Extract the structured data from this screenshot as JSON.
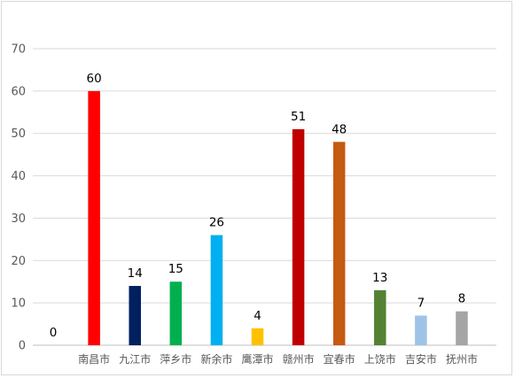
{
  "chart_data": {
    "type": "bar",
    "title": "",
    "xlabel": "",
    "ylabel": "",
    "ylim": [
      0,
      70
    ],
    "yticks": [
      0,
      10,
      20,
      30,
      40,
      50,
      60,
      70
    ],
    "grid": true,
    "legend": "none",
    "categories": [
      "",
      "南昌市",
      "九江市",
      "萍乡市",
      "新余市",
      "鹰潭市",
      "赣州市",
      "宜春市",
      "上饶市",
      "吉安市",
      "抚州市"
    ],
    "values": [
      0,
      60,
      14,
      15,
      26,
      4,
      51,
      48,
      13,
      7,
      8
    ],
    "colors": [
      "#4472c4",
      "#ff0000",
      "#002060",
      "#00b050",
      "#00b0f0",
      "#ffc000",
      "#c00000",
      "#c55a11",
      "#548235",
      "#9dc3e6",
      "#a5a5a5"
    ]
  }
}
